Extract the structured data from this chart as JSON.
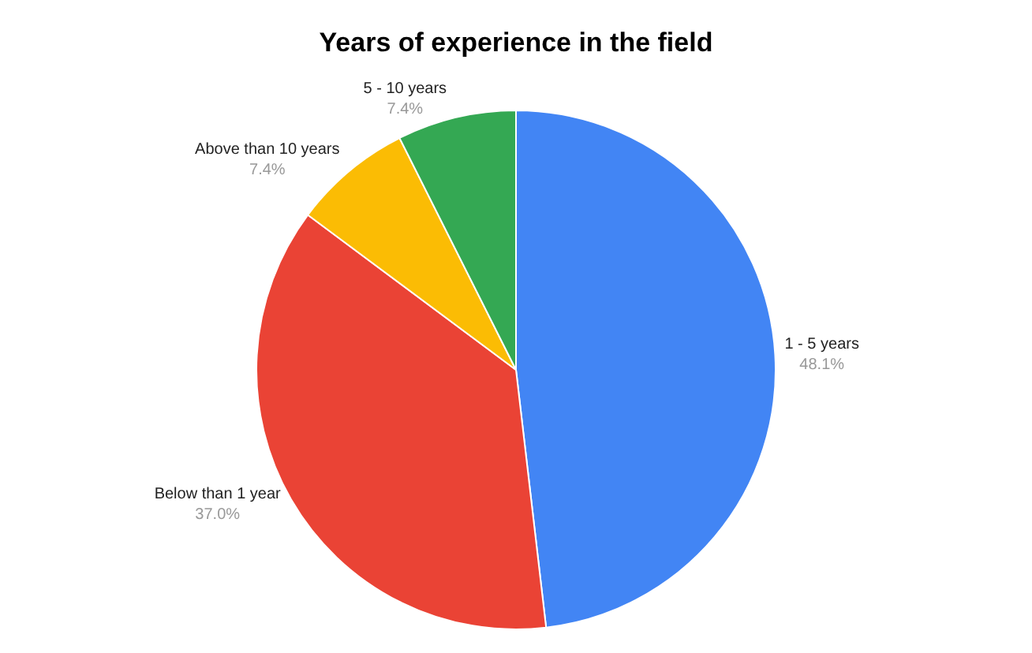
{
  "chart_data": {
    "type": "pie",
    "title": "Years of experience in the field",
    "categories": [
      "1 - 5 years",
      "Below than 1 year",
      "Above than 10 years",
      "5 - 10 years"
    ],
    "values": [
      48.1,
      37.0,
      7.4,
      7.4
    ],
    "colors": [
      "#4285f4",
      "#ea4335",
      "#fbbc04",
      "#34a853"
    ],
    "value_labels": [
      "48.1%",
      "37.0%",
      "7.4%",
      "7.4%"
    ],
    "legend": false
  }
}
